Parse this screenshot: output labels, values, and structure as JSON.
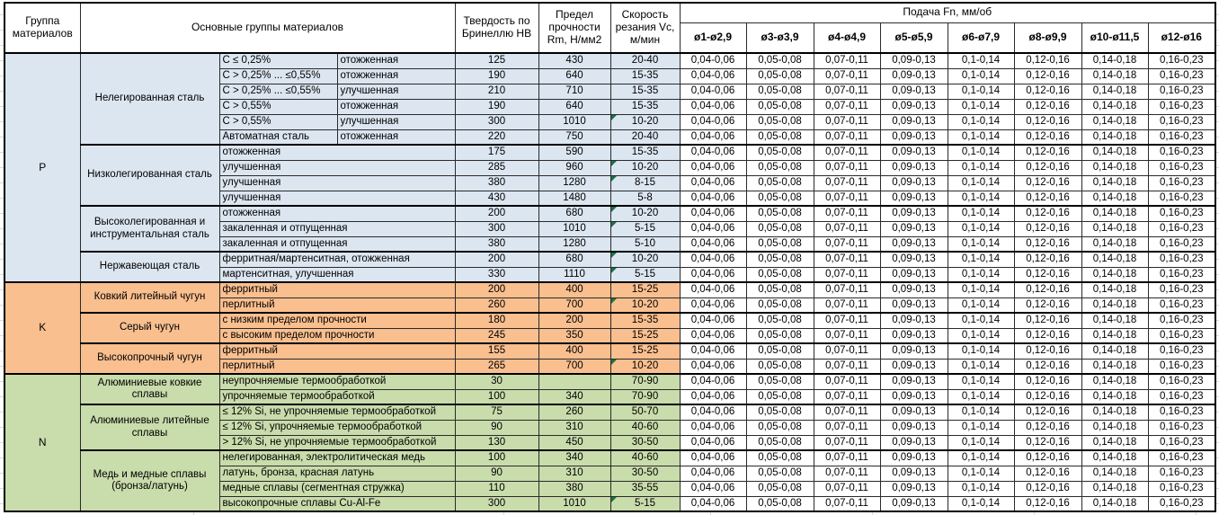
{
  "header": {
    "group_col": "Группа материалов",
    "material_col": "Основные группы материалов",
    "hardness_col": "Твердость по Бринеллю HB",
    "strength_col": "Предел прочности Rm, Н/мм2",
    "speed_col": "Скорость резания Vc, м/мин",
    "feed_title": "Подача Fn, мм/об",
    "feed_cols": [
      "ø1-ø2,9",
      "ø3-ø3,9",
      "ø4-ø4,9",
      "ø5-ø5,9",
      "ø6-ø7,9",
      "ø8-ø9,9",
      "ø10-ø11,5",
      "ø12-ø16"
    ]
  },
  "feed_values": [
    "0,04-0,06",
    "0,05-0,08",
    "0,07-0,11",
    "0,09-0,13",
    "0,1-0,14",
    "0,12-0,16",
    "0,14-0,18",
    "0,16-0,23"
  ],
  "colors": {
    "P": "#dce6f1",
    "K": "#fabf8f",
    "N": "#c9dcab",
    "flag": "#1e7145"
  },
  "groups": [
    {
      "code": "P",
      "color": "#dce6f1",
      "subgroups": [
        {
          "name": "Нелегированная сталь",
          "rows": [
            {
              "c1": "C ≤ 0,25%",
              "c2": "отожженная",
              "hb": "125",
              "rm": "430",
              "vc": "20-40",
              "flag": false
            },
            {
              "c1": "C > 0,25% ... ≤0,55%",
              "c2": "отожженная",
              "hb": "190",
              "rm": "640",
              "vc": "15-35",
              "flag": false
            },
            {
              "c1": "C > 0,25% ... ≤0,55%",
              "c2": "улучшенная",
              "hb": "210",
              "rm": "710",
              "vc": "15-35",
              "flag": false
            },
            {
              "c1": "C > 0,55%",
              "c2": "отожженная",
              "hb": "190",
              "rm": "640",
              "vc": "15-35",
              "flag": false
            },
            {
              "c1": "C > 0,55%",
              "c2": "улучшенная",
              "hb": "300",
              "rm": "1010",
              "vc": "10-20",
              "flag": true
            },
            {
              "c1": "Автоматная сталь",
              "c2": "отожженная",
              "hb": "220",
              "rm": "750",
              "vc": "20-40",
              "flag": false
            }
          ]
        },
        {
          "name": "Низколегированная сталь",
          "rows": [
            {
              "c1": "отожженная",
              "c2": null,
              "hb": "175",
              "rm": "590",
              "vc": "15-35",
              "flag": false
            },
            {
              "c1": "улучшенная",
              "c2": null,
              "hb": "285",
              "rm": "960",
              "vc": "10-20",
              "flag": true
            },
            {
              "c1": "улучшенная",
              "c2": null,
              "hb": "380",
              "rm": "1280",
              "vc": "8-15",
              "flag": true
            },
            {
              "c1": "улучшенная",
              "c2": null,
              "hb": "430",
              "rm": "1480",
              "vc": "5-8",
              "flag": false
            }
          ]
        },
        {
          "name": "Высоколегированная и инструментальная сталь",
          "rows": [
            {
              "c1": "отожженная",
              "c2": null,
              "hb": "200",
              "rm": "680",
              "vc": "10-20",
              "flag": true
            },
            {
              "c1": "закаленная и отпущенная",
              "c2": null,
              "hb": "300",
              "rm": "1010",
              "vc": "5-15",
              "flag": true
            },
            {
              "c1": "закаленная и отпущенная",
              "c2": null,
              "hb": "380",
              "rm": "1280",
              "vc": "5-10",
              "flag": false
            }
          ]
        },
        {
          "name": "Нержавеющая сталь",
          "rows": [
            {
              "c1": "ферритная/мартенситная, отожженная",
              "c2": null,
              "hb": "200",
              "rm": "680",
              "vc": "10-20",
              "flag": true
            },
            {
              "c1": "мартенситная, улучшенная",
              "c2": null,
              "hb": "330",
              "rm": "1110",
              "vc": "5-15",
              "flag": true
            }
          ]
        }
      ]
    },
    {
      "code": "K",
      "color": "#fabf8f",
      "subgroups": [
        {
          "name": "Ковкий литейный чугун",
          "rows": [
            {
              "c1": "ферритный",
              "c2": null,
              "hb": "200",
              "rm": "400",
              "vc": "15-25",
              "flag": false
            },
            {
              "c1": "перлитный",
              "c2": null,
              "hb": "260",
              "rm": "700",
              "vc": "10-20",
              "flag": true
            }
          ]
        },
        {
          "name": "Серый чугун",
          "rows": [
            {
              "c1": "с низким пределом прочности",
              "c2": null,
              "hb": "180",
              "rm": "200",
              "vc": "15-35",
              "flag": false
            },
            {
              "c1": "с высоким пределом прочности",
              "c2": null,
              "hb": "245",
              "rm": "350",
              "vc": "15-25",
              "flag": false
            }
          ]
        },
        {
          "name": "Высокопрочный чугун",
          "rows": [
            {
              "c1": "ферритный",
              "c2": null,
              "hb": "155",
              "rm": "400",
              "vc": "15-25",
              "flag": false
            },
            {
              "c1": "перлитный",
              "c2": null,
              "hb": "265",
              "rm": "700",
              "vc": "10-20",
              "flag": true
            }
          ]
        }
      ]
    },
    {
      "code": "N",
      "color": "#c9dcab",
      "subgroups": [
        {
          "name": "Алюминиевые ковкие сплавы",
          "rows": [
            {
              "c1": "неупрочняемые термообработкой",
              "c2": null,
              "hb": "30",
              "rm": "",
              "vc": "70-90",
              "flag": false
            },
            {
              "c1": "упрочняемые термообработкой",
              "c2": null,
              "hb": "100",
              "rm": "340",
              "vc": "70-90",
              "flag": false
            }
          ]
        },
        {
          "name": "Алюминиевые литейные сплавы",
          "rows": [
            {
              "c1": "≤ 12% Si, не упрочняемые термообработкой",
              "c2": null,
              "hb": "75",
              "rm": "260",
              "vc": "50-70",
              "flag": false
            },
            {
              "c1": "≤ 12% Si, упрочняемые термообработкой",
              "c2": null,
              "hb": "90",
              "rm": "310",
              "vc": "40-60",
              "flag": false
            },
            {
              "c1": "> 12% Si, не упрочняемые термообработкой",
              "c2": null,
              "hb": "130",
              "rm": "450",
              "vc": "30-50",
              "flag": false
            }
          ]
        },
        {
          "name": "Медь и медные сплавы (бронза/латунь)",
          "rows": [
            {
              "c1": "нелегированная, электролитическая медь",
              "c2": null,
              "hb": "100",
              "rm": "340",
              "vc": "40-60",
              "flag": false
            },
            {
              "c1": "латунь, бронза, красная латунь",
              "c2": null,
              "hb": "90",
              "rm": "310",
              "vc": "30-50",
              "flag": false
            },
            {
              "c1": "медные сплавы (сегментная стружка)",
              "c2": null,
              "hb": "110",
              "rm": "380",
              "vc": "35-55",
              "flag": false
            },
            {
              "c1": "высокопрочные сплавы Cu-Al-Fe",
              "c2": null,
              "hb": "300",
              "rm": "1010",
              "vc": "5-15",
              "flag": true
            }
          ]
        }
      ]
    }
  ]
}
